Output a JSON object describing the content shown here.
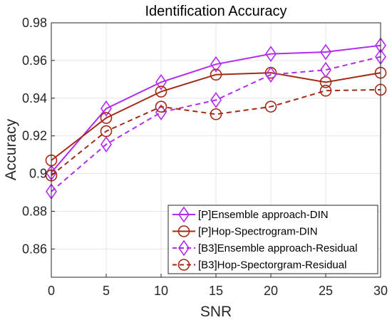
{
  "chart_data": {
    "type": "line",
    "title": "Identification Accuracy",
    "xlabel": "SNR",
    "ylabel": "Accuracy",
    "x": [
      0,
      5,
      10,
      15,
      20,
      25,
      30
    ],
    "xlim": [
      0,
      30
    ],
    "ylim": [
      0.845,
      0.98
    ],
    "xticks": [
      0,
      5,
      10,
      15,
      20,
      25,
      30
    ],
    "yticks": [
      0.86,
      0.88,
      0.9,
      0.92,
      0.94,
      0.96,
      0.98
    ],
    "ytick_labels": [
      "0.86",
      "0.88",
      "0.9",
      "0.92",
      "0.94",
      "0.96",
      "0.98"
    ],
    "grid": true,
    "legend_position": "bottom-right",
    "series": [
      {
        "name": "[P]Ensemble approach-DIN",
        "values": [
          0.9005,
          0.9345,
          0.9485,
          0.958,
          0.9635,
          0.9645,
          0.968
        ],
        "color": "#b22cf0",
        "marker": "diamond",
        "dash": "solid"
      },
      {
        "name": "[P]Hop-Spectrogram-DIN",
        "values": [
          0.907,
          0.9295,
          0.9435,
          0.9525,
          0.9535,
          0.9485,
          0.9535
        ],
        "color": "#a52a16",
        "marker": "circle",
        "dash": "solid"
      },
      {
        "name": "[B3]Ensemble approach-Residual",
        "values": [
          0.8905,
          0.9155,
          0.9325,
          0.939,
          0.9525,
          0.955,
          0.962
        ],
        "color": "#b22cf0",
        "marker": "diamond",
        "dash": "dashed"
      },
      {
        "name": "[B3]Hop-Spectorgram-Residual",
        "values": [
          0.899,
          0.9225,
          0.9355,
          0.9315,
          0.9355,
          0.944,
          0.9445
        ],
        "color": "#a52a16",
        "marker": "circle",
        "dash": "dashed"
      }
    ]
  }
}
